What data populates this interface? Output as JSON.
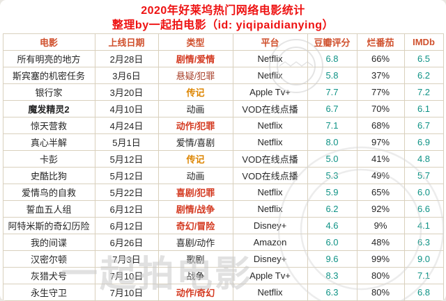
{
  "chart_data": {
    "type": "table",
    "title": "2020年好莱坞热门网络电影统计",
    "subtitle": "整理by一起拍电影（id: yiqipaidianying）",
    "columns": [
      "电影",
      "上线日期",
      "类型",
      "平台",
      "豆瓣评分",
      "烂番茄",
      "IMDb"
    ],
    "rows": [
      {
        "movie": "所有明亮的地方",
        "date": "2月28日",
        "genre": "剧情/爱情",
        "genre_color": "red",
        "genre_bold": true,
        "platform": "Netflix",
        "douban": "6.8",
        "rotten": "66%",
        "imdb": "6.5"
      },
      {
        "movie": "斯宾塞的机密任务",
        "date": "3月6日",
        "genre": "悬疑/犯罪",
        "genre_color": "dark_red",
        "genre_bold": false,
        "platform": "Netflix",
        "douban": "5.8",
        "rotten": "37%",
        "imdb": "6.2"
      },
      {
        "movie": "银行家",
        "date": "3月20日",
        "genre": "传记",
        "genre_color": "orange",
        "genre_bold": true,
        "platform": "Apple Tv+",
        "douban": "7.7",
        "rotten": "77%",
        "imdb": "7.2"
      },
      {
        "movie": "魔发精灵2",
        "movie_bold": true,
        "date": "4月10日",
        "genre": "动画",
        "genre_color": "black",
        "genre_bold": false,
        "platform": "VOD在线点播",
        "douban": "6.7",
        "rotten": "70%",
        "imdb": "6.1"
      },
      {
        "movie": "惊天营救",
        "date": "4月24日",
        "genre": "动作/犯罪",
        "genre_color": "red",
        "genre_bold": true,
        "platform": "Netflix",
        "douban": "7.1",
        "rotten": "68%",
        "imdb": "6.7"
      },
      {
        "movie": "真心半解",
        "date": "5月1日",
        "genre": "爱情/喜剧",
        "genre_color": "black",
        "genre_bold": false,
        "platform": "Netflix",
        "douban": "8.0",
        "rotten": "97%",
        "imdb": "6.9"
      },
      {
        "movie": "卡彭",
        "date": "5月12日",
        "genre": "传记",
        "genre_color": "orange",
        "genre_bold": true,
        "platform": "VOD在线点播",
        "douban": "5.0",
        "rotten": "41%",
        "imdb": "4.8"
      },
      {
        "movie": "史酷比狗",
        "date": "5月12日",
        "genre": "动画",
        "genre_color": "black",
        "genre_bold": false,
        "platform": "VOD在线点播",
        "douban": "5.3",
        "rotten": "49%",
        "imdb": "5.7"
      },
      {
        "movie": "爱情鸟的自救",
        "date": "5月22日",
        "genre": "喜剧/犯罪",
        "genre_color": "red",
        "genre_bold": true,
        "platform": "Netflix",
        "douban": "5.9",
        "rotten": "65%",
        "imdb": "6.0"
      },
      {
        "movie": "誓血五人组",
        "date": "6月12日",
        "genre": "剧情/战争",
        "genre_color": "red",
        "genre_bold": true,
        "platform": "Netflix",
        "douban": "6.2",
        "rotten": "92%",
        "imdb": "6.6"
      },
      {
        "movie": "阿特米斯的奇幻历险",
        "date": "6月12日",
        "genre": "奇幻/冒险",
        "genre_color": "red",
        "genre_bold": true,
        "platform": "Disney+",
        "douban": "4.6",
        "rotten": "9%",
        "imdb": "4.1"
      },
      {
        "movie": "我的间谍",
        "date": "6月26日",
        "genre": "喜剧/动作",
        "genre_color": "black",
        "genre_bold": false,
        "platform": "Amazon",
        "douban": "6.0",
        "rotten": "48%",
        "imdb": "6.3"
      },
      {
        "movie": "汉密尔顿",
        "date": "7月3日",
        "genre": "歌剧",
        "genre_color": "black",
        "genre_bold": false,
        "platform": "Disney+",
        "douban": "9.6",
        "rotten": "99%",
        "imdb": "9.0"
      },
      {
        "movie": "灰猎犬号",
        "date": "7月10日",
        "genre": "战争",
        "genre_color": "black",
        "genre_bold": false,
        "platform": "Apple Tv+",
        "douban": "8.3",
        "rotten": "80%",
        "imdb": "7.1"
      },
      {
        "movie": "永生守卫",
        "date": "7月10日",
        "genre": "动作/奇幻",
        "genre_color": "red",
        "genre_bold": true,
        "platform": "Netflix",
        "douban": "6.3",
        "rotten": "80%",
        "imdb": "6.8"
      }
    ]
  },
  "watermark": {
    "text": "一起拍电影",
    "stamp": "circular-stamp"
  },
  "colors": {
    "title_red": "#ee1111",
    "header_red": "#d0512e",
    "genre_red": "#d43a21",
    "genre_orange": "#dd8500",
    "genre_dark_red": "#a8402a",
    "genre_black": "#262626",
    "score_teal": "#0e9285",
    "text_black": "#262626",
    "border": "#d9d0bd",
    "watermark_gray": "#c9c9c9"
  }
}
